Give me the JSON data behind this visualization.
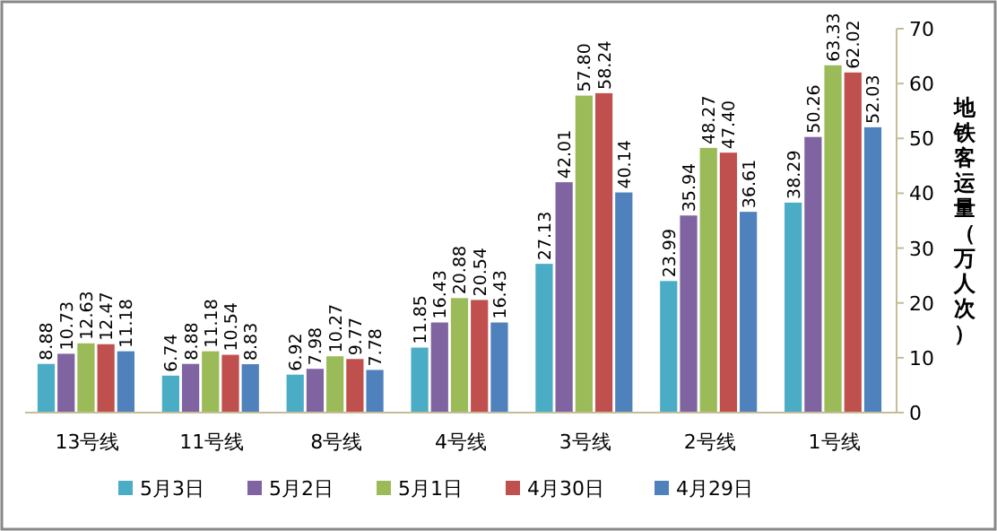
{
  "chart_data": {
    "type": "bar",
    "ylabel": "地铁客运量（万人次）",
    "categories": [
      "13号线",
      "11号线",
      "8号线",
      "4号线",
      "3号线",
      "2号线",
      "1号线"
    ],
    "series": [
      {
        "name": "5月3日",
        "color": "#4bacc6",
        "values": [
          8.88,
          6.74,
          6.92,
          11.85,
          27.13,
          23.99,
          38.29
        ],
        "value_labels": [
          "8.88",
          "6.74",
          "6.92",
          "11.85",
          "27.13",
          "23.99",
          "38.29"
        ]
      },
      {
        "name": "5月2日",
        "color": "#8064a2",
        "values": [
          10.73,
          8.88,
          7.98,
          16.43,
          42.01,
          35.94,
          50.26
        ],
        "value_labels": [
          "10.73",
          "8.88",
          "7.98",
          "16.43",
          "42.01",
          "35.94",
          "50.26"
        ]
      },
      {
        "name": "5月1日",
        "color": "#9bbb59",
        "values": [
          12.63,
          11.18,
          10.27,
          20.88,
          57.8,
          48.27,
          63.33
        ],
        "value_labels": [
          "12.63",
          "11.18",
          "10.27",
          "20.88",
          "57.80",
          "48.27",
          "63.33"
        ]
      },
      {
        "name": "4月30日",
        "color": "#c0504d",
        "values": [
          12.47,
          10.54,
          9.77,
          20.54,
          58.24,
          47.4,
          62.02
        ],
        "value_labels": [
          "12.47",
          "10.54",
          "9.77",
          "20.54",
          "58.24",
          "47.40",
          "62.02"
        ]
      },
      {
        "name": "4月29日",
        "color": "#4f81bd",
        "values": [
          11.18,
          8.83,
          7.78,
          16.43,
          40.14,
          36.61,
          52.03
        ],
        "value_labels": [
          "11.18",
          "8.83",
          "7.78",
          "16.43",
          "40.14",
          "36.61",
          "52.03"
        ]
      }
    ],
    "ylim": [
      0,
      70
    ],
    "yticks": [
      0,
      10,
      20,
      30,
      40,
      50,
      60,
      70
    ],
    "legend": "bottom",
    "grid": false
  }
}
